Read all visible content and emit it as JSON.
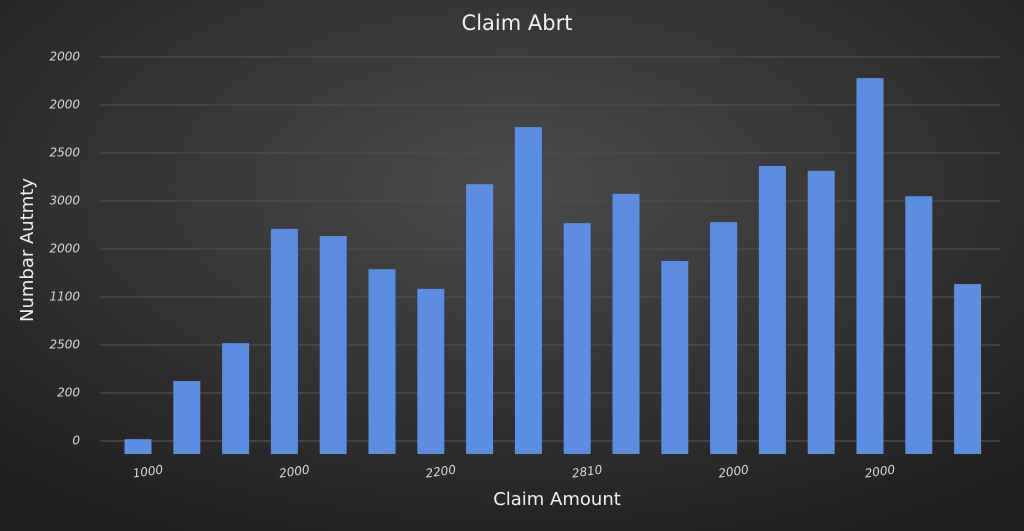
{
  "chart_data": {
    "type": "bar",
    "title": "Claim Abrt",
    "x_label": "Claim Amount",
    "y_label": "Numbar Autmty",
    "categories": [
      "1000",
      null,
      null,
      "2000",
      null,
      null,
      "2200",
      null,
      null,
      "2810",
      null,
      null,
      "2000",
      null,
      null,
      "2000",
      null,
      null
    ],
    "values": [
      0.04,
      1.25,
      2.04,
      4.42,
      4.27,
      3.58,
      3.17,
      5.35,
      6.54,
      4.54,
      5.15,
      3.75,
      4.56,
      5.73,
      5.63,
      7.56,
      5.1,
      3.27
    ],
    "color": "#5b8de0",
    "ylim": [
      -0.27,
      8
    ],
    "yticks": [
      0,
      {
        "value": 1,
        "label": "200"
      },
      {
        "value": 2,
        "label": "2500"
      },
      {
        "value": 3,
        "label": "1100"
      },
      {
        "value": 4,
        "label": "2000"
      },
      {
        "value": 5,
        "label": "3000"
      },
      {
        "value": 6,
        "label": "2500"
      },
      {
        "value": 7,
        "label": "2000"
      },
      {
        "value": 8,
        "label": "2000"
      }
    ],
    "grid": true
  }
}
